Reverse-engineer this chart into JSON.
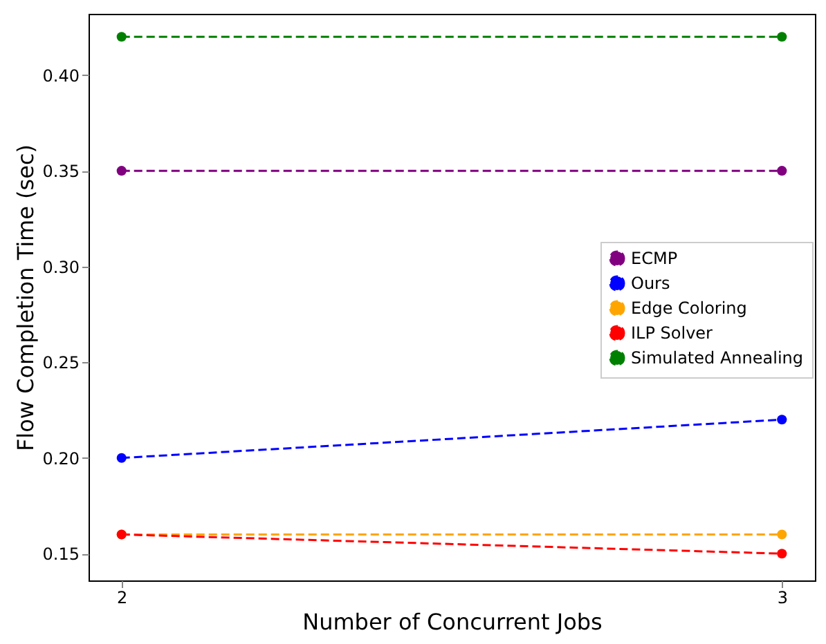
{
  "chart_data": {
    "type": "line",
    "xlabel": "Number of Concurrent Jobs",
    "ylabel": "Flow Completion Time (sec)",
    "x": [
      2,
      3
    ],
    "xlim": [
      1.95,
      3.05
    ],
    "xticks": [
      2,
      3
    ],
    "ylim": [
      0.136,
      0.432
    ],
    "yticks": [
      0.15,
      {
        "value": 0.2,
        "label": "0.20"
      },
      0.25,
      {
        "value": 0.3,
        "label": "0.30"
      },
      0.35,
      {
        "value": 0.4,
        "label": "0.40"
      }
    ],
    "series": [
      {
        "name": "ECMP",
        "color": "#800080",
        "values": [
          0.35,
          0.35
        ]
      },
      {
        "name": "Ours",
        "color": "#0000ff",
        "values": [
          0.2,
          0.22
        ]
      },
      {
        "name": "Edge Coloring",
        "color": "#ffa500",
        "values": [
          0.16,
          0.16
        ]
      },
      {
        "name": "ILP Solver",
        "color": "#ff0000",
        "values": [
          0.16,
          0.15
        ]
      },
      {
        "name": "Simulated Annealing",
        "color": "#008000",
        "values": [
          0.42,
          0.42
        ]
      }
    ],
    "marker": "circle",
    "line_style": "dashed",
    "legend": "right",
    "grid": false
  }
}
